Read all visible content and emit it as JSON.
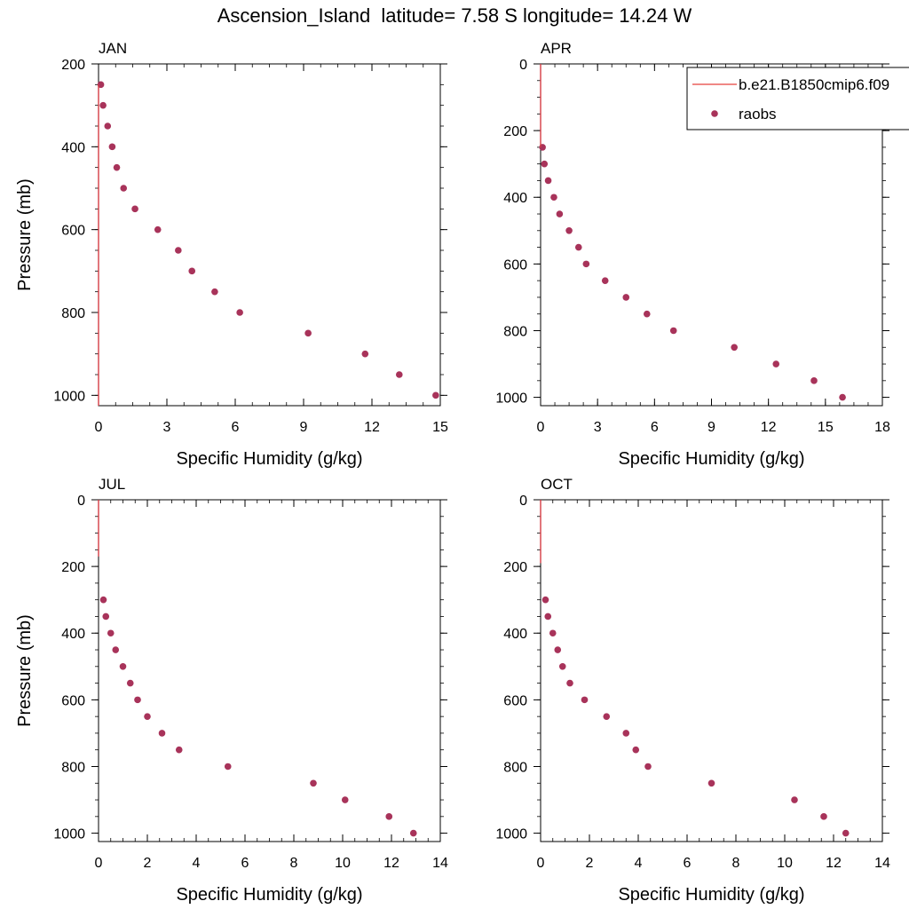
{
  "title": "Ascension_Island  latitude= 7.58 S longitude= 14.24 W",
  "colors": {
    "obs": "#A8335A",
    "model": "#E8413C",
    "axis": "#000000"
  },
  "legend": {
    "items": [
      {
        "label": "b.e21.B1850cmip6.f09",
        "kind": "line"
      },
      {
        "label": "raobs",
        "kind": "marker"
      }
    ]
  },
  "chart_data": [
    {
      "type": "scatter",
      "panel": "JAN",
      "xlabel": "Specific Humidity (g/kg)",
      "ylabel": "Pressure (mb)",
      "xlim": [
        0,
        15
      ],
      "ylim": [
        200,
        1025
      ],
      "xticks": [
        0,
        3,
        6,
        9,
        12,
        15
      ],
      "yticks": [
        200,
        400,
        600,
        800,
        1000
      ],
      "series": [
        {
          "name": "raobs",
          "x": [
            0.1,
            0.2,
            0.4,
            0.6,
            0.8,
            1.1,
            1.6,
            2.6,
            3.5,
            4.1,
            5.1,
            6.2,
            9.2,
            11.7,
            13.2,
            14.8
          ],
          "y": [
            250,
            300,
            350,
            400,
            450,
            500,
            550,
            600,
            650,
            700,
            750,
            800,
            850,
            900,
            950,
            1000
          ]
        },
        {
          "name": "b.e21.B1850cmip6.f09",
          "x": [
            0.0,
            0.0
          ],
          "y": [
            250,
            1025
          ]
        }
      ]
    },
    {
      "type": "scatter",
      "panel": "APR",
      "xlabel": "Specific Humidity (g/kg)",
      "ylabel": "",
      "xlim": [
        0,
        18
      ],
      "ylim": [
        0,
        1025
      ],
      "xticks": [
        0,
        3,
        6,
        9,
        12,
        15,
        18
      ],
      "yticks": [
        0,
        200,
        400,
        600,
        800,
        1000
      ],
      "series": [
        {
          "name": "raobs",
          "x": [
            0.1,
            0.2,
            0.4,
            0.7,
            1.0,
            1.5,
            2.0,
            2.4,
            3.4,
            4.5,
            5.6,
            7.0,
            10.2,
            12.4,
            14.4,
            15.9
          ],
          "y": [
            250,
            300,
            350,
            400,
            450,
            500,
            550,
            600,
            650,
            700,
            750,
            800,
            850,
            900,
            950,
            1000
          ]
        },
        {
          "name": "b.e21.B1850cmip6.f09",
          "x": [
            0.0,
            0.0
          ],
          "y": [
            0,
            250
          ]
        }
      ]
    },
    {
      "type": "scatter",
      "panel": "JUL",
      "xlabel": "Specific Humidity (g/kg)",
      "ylabel": "Pressure (mb)",
      "xlim": [
        0,
        14
      ],
      "ylim": [
        0,
        1025
      ],
      "xticks": [
        0,
        2,
        4,
        6,
        8,
        10,
        12,
        14
      ],
      "yticks": [
        0,
        200,
        400,
        600,
        800,
        1000
      ],
      "series": [
        {
          "name": "raobs",
          "x": [
            0.2,
            0.3,
            0.5,
            0.7,
            1.0,
            1.3,
            1.6,
            2.0,
            2.6,
            3.3,
            5.3,
            8.8,
            10.1,
            11.9,
            12.9
          ],
          "y": [
            300,
            350,
            400,
            450,
            500,
            550,
            600,
            650,
            700,
            750,
            800,
            850,
            900,
            950,
            1000
          ]
        },
        {
          "name": "b.e21.B1850cmip6.f09",
          "x": [
            0.0,
            0.0
          ],
          "y": [
            0,
            170
          ]
        }
      ]
    },
    {
      "type": "scatter",
      "panel": "OCT",
      "xlabel": "Specific Humidity (g/kg)",
      "ylabel": "",
      "xlim": [
        0,
        14
      ],
      "ylim": [
        0,
        1025
      ],
      "xticks": [
        0,
        2,
        4,
        6,
        8,
        10,
        12,
        14
      ],
      "yticks": [
        0,
        200,
        400,
        600,
        800,
        1000
      ],
      "series": [
        {
          "name": "raobs",
          "x": [
            0.2,
            0.3,
            0.5,
            0.7,
            0.9,
            1.2,
            1.8,
            2.7,
            3.5,
            3.9,
            4.4,
            7.0,
            10.4,
            11.6,
            12.5
          ],
          "y": [
            300,
            350,
            400,
            450,
            500,
            550,
            600,
            650,
            700,
            750,
            800,
            850,
            900,
            950,
            1000
          ]
        },
        {
          "name": "b.e21.B1850cmip6.f09",
          "x": [
            0.0,
            0.0
          ],
          "y": [
            0,
            190
          ]
        }
      ]
    }
  ]
}
